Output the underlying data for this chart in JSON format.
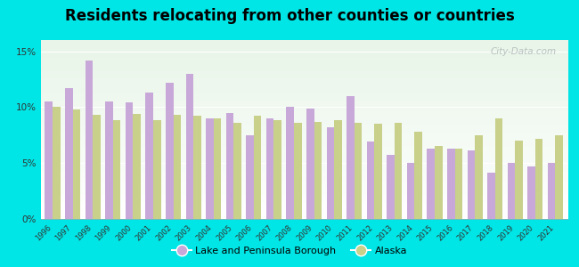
{
  "title": "Residents relocating from other counties or countries",
  "years": [
    1996,
    1997,
    1998,
    1999,
    2000,
    2001,
    2002,
    2003,
    2004,
    2005,
    2006,
    2007,
    2008,
    2009,
    2010,
    2011,
    2012,
    2013,
    2014,
    2015,
    2016,
    2017,
    2018,
    2019,
    2020,
    2021
  ],
  "lake_values": [
    10.5,
    11.7,
    14.2,
    10.5,
    10.4,
    11.3,
    12.2,
    13.0,
    9.0,
    9.5,
    7.5,
    9.0,
    10.0,
    9.9,
    8.2,
    11.0,
    6.9,
    5.7,
    5.0,
    6.3,
    6.3,
    6.1,
    4.1,
    5.0,
    4.7,
    5.0
  ],
  "alaska_values": [
    10.0,
    9.8,
    9.3,
    8.8,
    9.4,
    8.8,
    9.3,
    9.2,
    9.0,
    8.6,
    9.2,
    8.8,
    8.6,
    8.7,
    8.8,
    8.6,
    8.5,
    8.6,
    7.8,
    6.5,
    6.3,
    7.5,
    9.0,
    7.0,
    7.2,
    7.5
  ],
  "lake_color": "#c8a8d8",
  "alaska_color": "#c8d08a",
  "bg_color": "#00e5e5",
  "ylim": [
    0,
    16
  ],
  "yticks": [
    0,
    5,
    10,
    15
  ],
  "ytick_labels": [
    "0%",
    "5%",
    "10%",
    "15%"
  ],
  "legend_lake": "Lake and Peninsula Borough",
  "legend_alaska": "Alaska",
  "watermark": "City-Data.com",
  "title_fontsize": 12,
  "bar_width": 0.38
}
